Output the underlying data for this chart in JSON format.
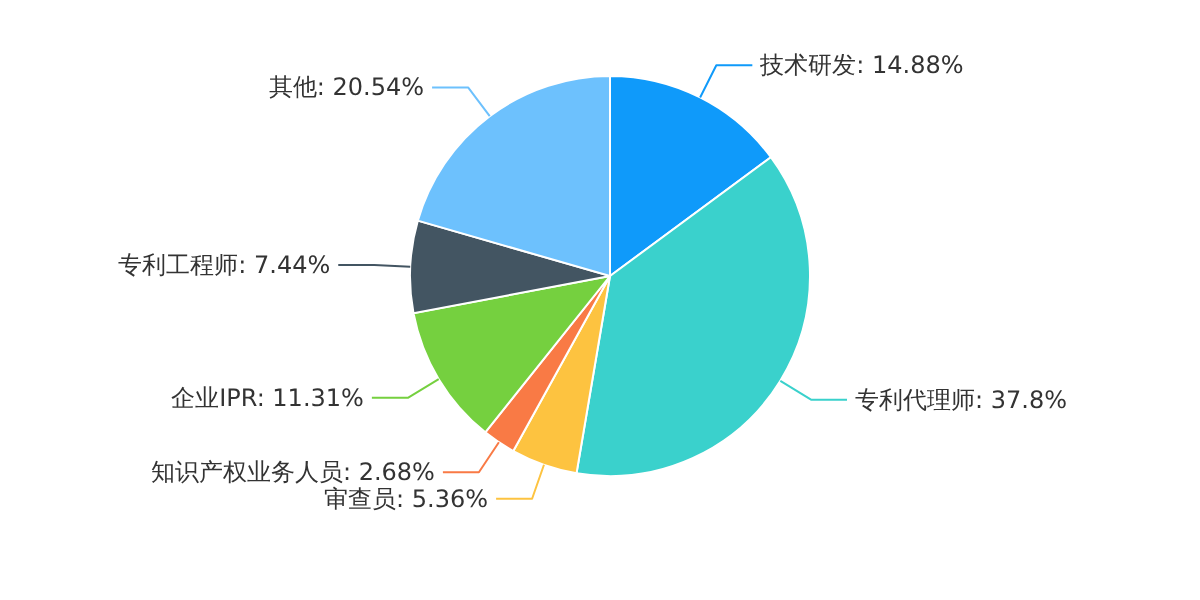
{
  "chart_data": {
    "type": "pie",
    "categories": [
      "技术研发",
      "专利代理师",
      "审查员",
      "知识产权业务人员",
      "企业IPR",
      "专利工程师",
      "其他"
    ],
    "values": [
      14.88,
      37.8,
      5.36,
      2.68,
      11.31,
      7.44,
      20.54
    ],
    "value_labels": [
      "14.88%",
      "37.8%",
      "5.36%",
      "2.68%",
      "11.31%",
      "7.44%",
      "20.54%"
    ],
    "colors": [
      "#0f9afa",
      "#3ad1cc",
      "#fdc340",
      "#f97a45",
      "#75d03f",
      "#435562",
      "#6dc1fd"
    ]
  }
}
